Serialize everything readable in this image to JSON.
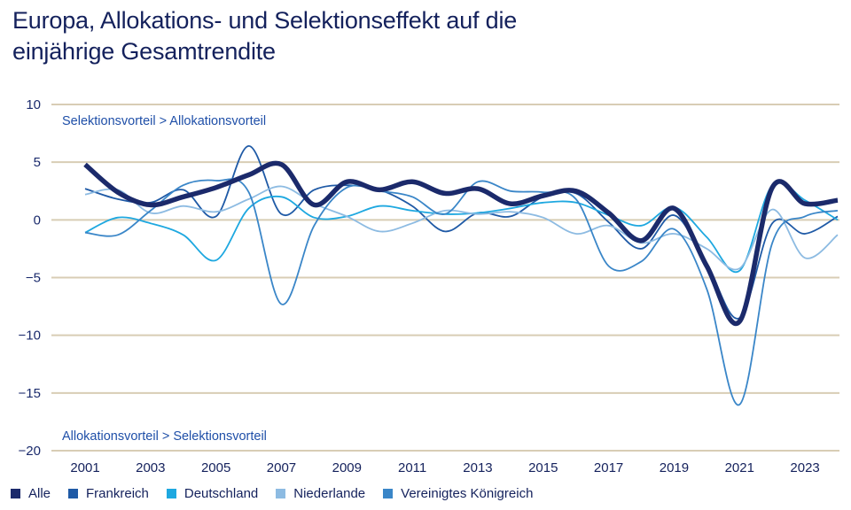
{
  "chart_data": {
    "type": "line",
    "title": "Europa, Allokations- und Selektionseffekt auf die einjährige Gesamtrendite",
    "title_lines": [
      "Europa, Allokations- und Selektionseffekt auf die",
      "einjährige Gesamtrendite"
    ],
    "xlabel": "",
    "ylabel": "",
    "x": [
      2001,
      2002,
      2003,
      2004,
      2005,
      2006,
      2007,
      2008,
      2009,
      2010,
      2011,
      2012,
      2013,
      2014,
      2015,
      2016,
      2017,
      2018,
      2019,
      2020,
      2021,
      2022,
      2023,
      2024
    ],
    "xlim": [
      2001,
      2024
    ],
    "xticks": [
      "2001",
      "2003",
      "2005",
      "2007",
      "2009",
      "2011",
      "2013",
      "2015",
      "2017",
      "2019",
      "2021",
      "2023"
    ],
    "xtick_values": [
      2001,
      2003,
      2005,
      2007,
      2009,
      2011,
      2013,
      2015,
      2017,
      2019,
      2021,
      2023
    ],
    "ylim": [
      -20,
      10
    ],
    "yticks": [
      "10",
      "5",
      "0",
      "−5",
      "−10",
      "−15",
      "−20"
    ],
    "ytick_values": [
      10,
      5,
      0,
      -5,
      -10,
      -15,
      -20
    ],
    "grid": "horizontal",
    "grid_color": "#d8cdb5",
    "annotations": {
      "top": "Selektionsvorteil > Allokationsvorteil",
      "bottom": "Allokationsvorteil > Selektionsvorteil"
    },
    "legend_position": "bottom-left",
    "series": [
      {
        "name": "Alle",
        "color": "#1b2a6b",
        "emphasis": true,
        "values": [
          4.8,
          2.4,
          1.3,
          2.0,
          2.8,
          3.9,
          4.8,
          1.3,
          3.3,
          2.6,
          3.3,
          2.3,
          2.7,
          1.4,
          2.1,
          2.5,
          0.6,
          -1.8,
          1.0,
          -4.0,
          -8.8,
          2.8,
          1.4,
          1.7
        ]
      },
      {
        "name": "Frankreich",
        "color": "#1f5aa6",
        "emphasis": false,
        "values": [
          2.7,
          1.8,
          1.5,
          2.6,
          0.3,
          6.4,
          0.5,
          2.6,
          3.0,
          2.6,
          1.2,
          -1.0,
          0.6,
          0.3,
          2.0,
          2.3,
          -0.2,
          -2.5,
          0.4,
          -3.8,
          -8.5,
          -0.3,
          -1.2,
          0.3
        ]
      },
      {
        "name": "Deutschland",
        "color": "#1ea8e0",
        "emphasis": false,
        "values": [
          -1.1,
          0.2,
          -0.3,
          -1.3,
          -3.5,
          1.0,
          2.0,
          0.2,
          0.3,
          1.2,
          0.8,
          0.5,
          0.6,
          1.0,
          1.5,
          1.5,
          0.4,
          -0.5,
          1.1,
          -1.5,
          -4.4,
          3.0,
          1.7,
          0.0
        ]
      },
      {
        "name": "Niederlande",
        "color": "#8dbbe2",
        "emphasis": false,
        "values": [
          2.2,
          2.6,
          0.6,
          1.2,
          0.7,
          1.8,
          2.9,
          1.4,
          0.3,
          -1.0,
          -0.3,
          0.8,
          0.5,
          0.7,
          0.2,
          -1.2,
          -0.5,
          -2.0,
          -1.2,
          -2.5,
          -4.2,
          0.9,
          -3.3,
          -1.3
        ]
      },
      {
        "name": "Vereinigtes Königreich",
        "color": "#3a86c8",
        "emphasis": false,
        "values": [
          -1.1,
          -1.3,
          0.8,
          3.0,
          3.4,
          2.4,
          -7.3,
          -0.5,
          2.8,
          2.5,
          2.0,
          0.5,
          3.3,
          2.5,
          2.4,
          1.8,
          -4.0,
          -3.6,
          -0.8,
          -6.0,
          -16.0,
          -2.0,
          0.3,
          0.8
        ]
      }
    ]
  }
}
